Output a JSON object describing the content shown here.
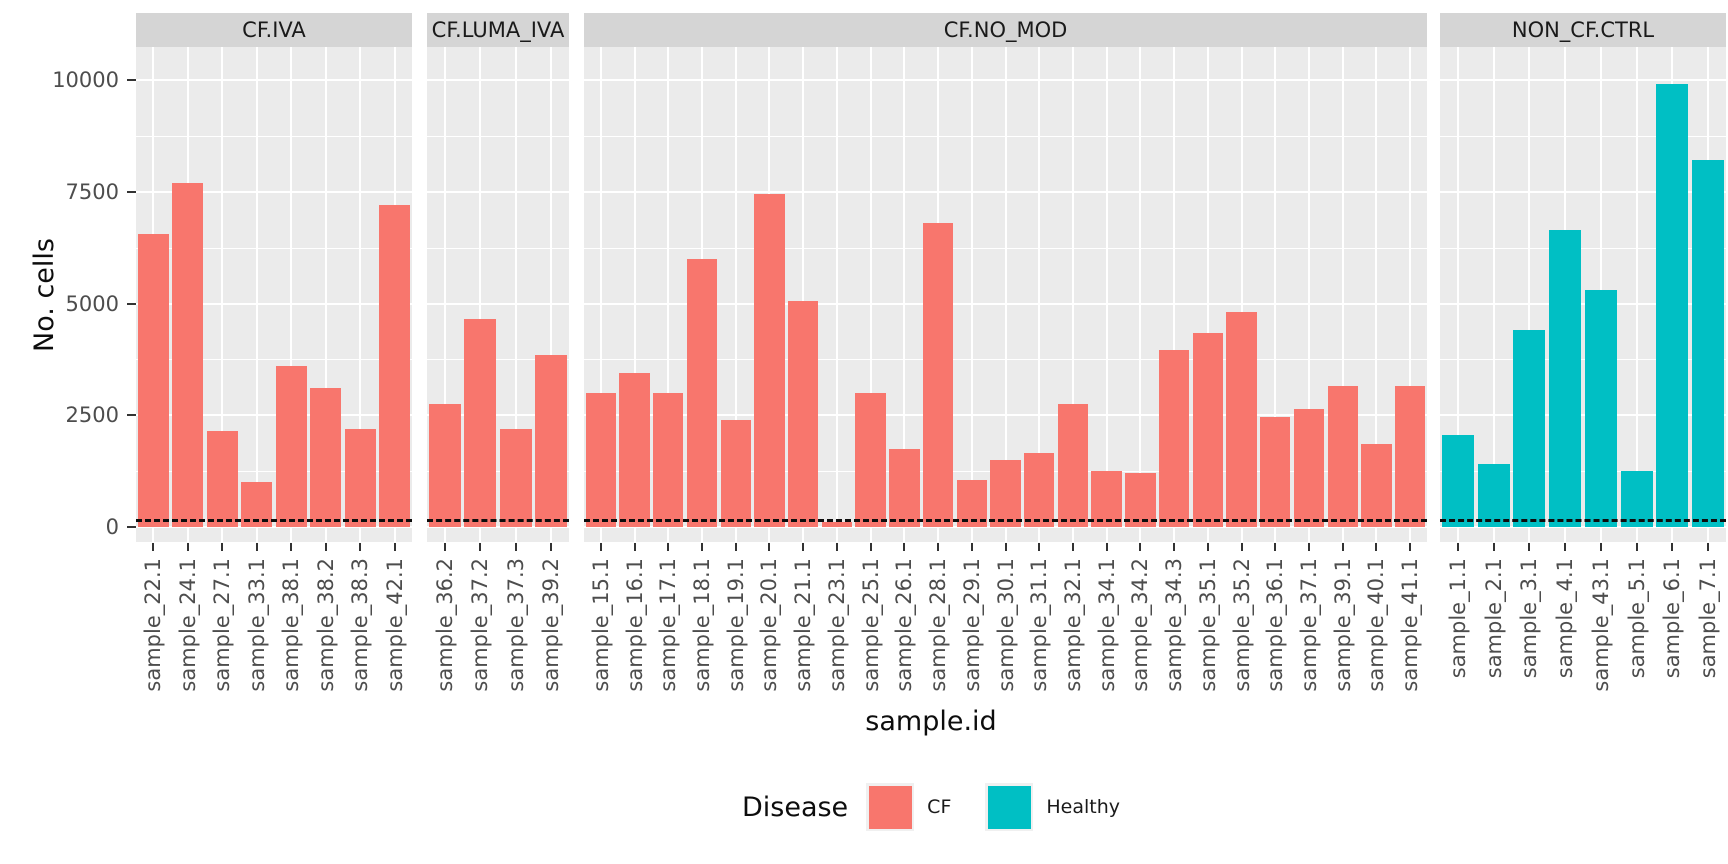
{
  "chart_data": {
    "type": "bar",
    "title": "",
    "xlabel": "sample.id",
    "ylabel": "No. cells",
    "ylim": [
      0,
      10000
    ],
    "yticks": [
      0,
      2500,
      5000,
      7500,
      10000
    ],
    "yticks_minor": [
      1250,
      3750,
      6250,
      8750
    ],
    "grid": true,
    "threshold_line": {
      "value": 150,
      "style": "dashed",
      "color": "#0d0d0d"
    },
    "legend": {
      "title": "Disease",
      "position": "bottom",
      "entries": [
        {
          "label": "CF",
          "color": "#F8766D"
        },
        {
          "label": "Healthy",
          "color": "#00BFC4"
        }
      ]
    },
    "facets": [
      {
        "label": "CF.IVA",
        "disease": "CF",
        "categories": [
          "sample_22.1",
          "sample_24.1",
          "sample_27.1",
          "sample_33.1",
          "sample_38.1",
          "sample_38.2",
          "sample_38.3",
          "sample_42.1"
        ],
        "values": [
          6550,
          7700,
          2150,
          1000,
          3600,
          3100,
          2200,
          7200
        ]
      },
      {
        "label": "CF.LUMA_IVA",
        "disease": "CF",
        "categories": [
          "sample_36.2",
          "sample_37.2",
          "sample_37.3",
          "sample_39.2"
        ],
        "values": [
          2750,
          4650,
          2200,
          3850
        ]
      },
      {
        "label": "CF.NO_MOD",
        "disease": "CF",
        "categories": [
          "sample_15.1",
          "sample_16.1",
          "sample_17.1",
          "sample_18.1",
          "sample_19.1",
          "sample_20.1",
          "sample_21.1",
          "sample_23.1",
          "sample_25.1",
          "sample_26.1",
          "sample_28.1",
          "sample_29.1",
          "sample_30.1",
          "sample_31.1",
          "sample_32.1",
          "sample_34.1",
          "sample_34.2",
          "sample_34.3",
          "sample_35.1",
          "sample_35.2",
          "sample_36.1",
          "sample_37.1",
          "sample_39.1",
          "sample_40.1",
          "sample_41.1"
        ],
        "values": [
          3000,
          3450,
          3000,
          6000,
          2400,
          7450,
          5050,
          120,
          3000,
          1750,
          6800,
          1050,
          1500,
          1650,
          2750,
          1250,
          1200,
          3950,
          4350,
          4800,
          2450,
          2650,
          3150,
          1850,
          3150
        ]
      },
      {
        "label": "NON_CF.CTRL",
        "disease": "Healthy",
        "categories": [
          "sample_1.1",
          "sample_2.1",
          "sample_3.1",
          "sample_4.1",
          "sample_43.1",
          "sample_5.1",
          "sample_6.1",
          "sample_7.1"
        ],
        "values": [
          2050,
          1400,
          4400,
          6650,
          5300,
          1250,
          9900,
          8200
        ]
      }
    ]
  },
  "colors": {
    "cf": "#F8766D",
    "healthy": "#00BFC4",
    "panel_background": "#ebebeb",
    "strip_background": "#d5d5d5",
    "gridline": "#ffffff",
    "tick_text": "#4d4d4d",
    "axis_text": "#0d0d0d"
  }
}
